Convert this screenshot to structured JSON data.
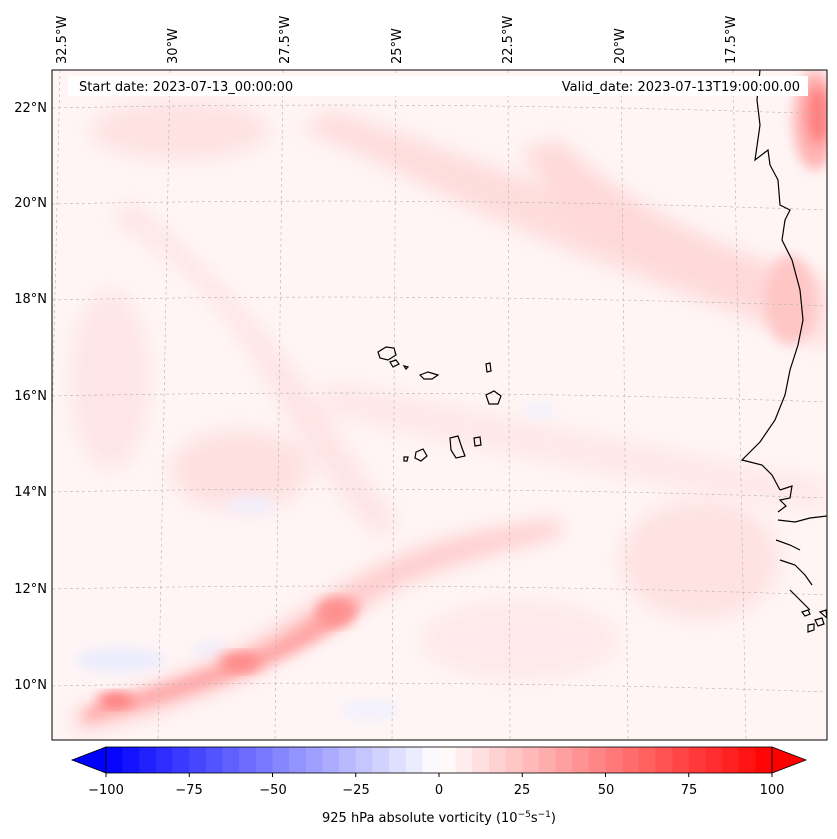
{
  "map": {
    "start_date": "Start date: 2023-07-13_00:00:00",
    "valid_date": "Valid_date: 2023-07-13T19:00:00.00",
    "lon_labels": [
      "32.5°W",
      "30°W",
      "27.5°W",
      "25°W",
      "22.5°W",
      "20°W",
      "17.5°W"
    ],
    "lat_labels": [
      "22°N",
      "20°N",
      "18°N",
      "16°N",
      "14°N",
      "12°N",
      "10°N"
    ]
  },
  "colorbar": {
    "ticks": [
      "−100",
      "−75",
      "−50",
      "−25",
      "0",
      "25",
      "50",
      "75",
      "100"
    ],
    "label": "925 hPa absolute vorticity (10",
    "label_exp1": "−5",
    "label_mid": "s",
    "label_exp2": "−1",
    "label_end": ")",
    "min": -100,
    "max": 100,
    "colors": {
      "low": "#0000ff",
      "mid": "#ffffff",
      "high": "#ff0000"
    }
  }
}
